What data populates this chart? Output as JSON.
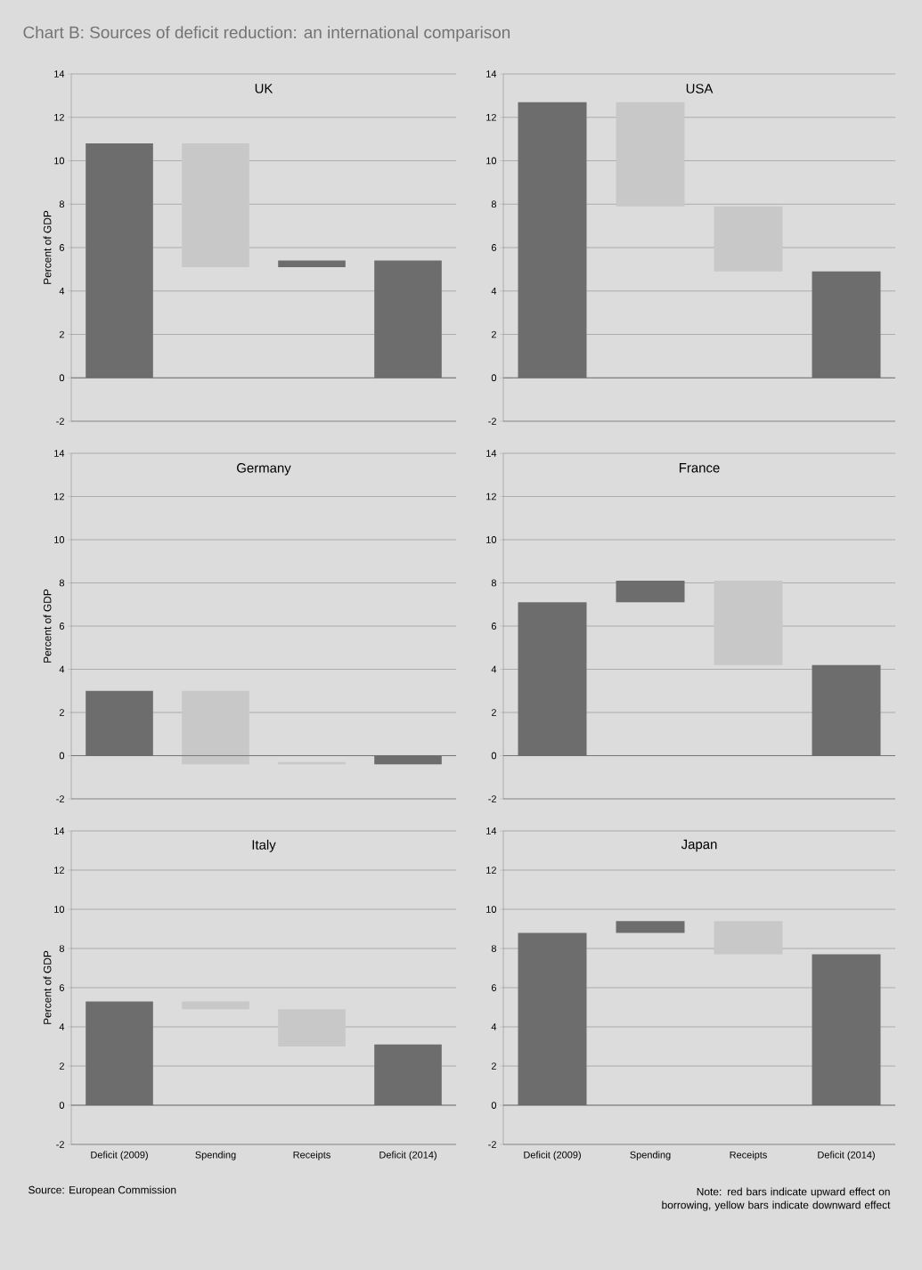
{
  "chart_data": [
    {
      "type": "bar",
      "title": "Chart B: Sources of deficit reduction: an international comparison",
      "subtitle": "UK",
      "ylabel": "Percent of GDP",
      "values": [
        10.8,
        5.7,
        0.3,
        5.4
      ],
      "base": [
        0,
        5.1,
        5.1,
        0
      ],
      "colors": [
        "#6d6d6d",
        "#c8c8c8",
        "#6d6d6d",
        "#6d6d6d"
      ],
      "ylim": [
        -2,
        14
      ],
      "yticks": [
        -2,
        0,
        2,
        4,
        6,
        8,
        10,
        12,
        14
      ],
      "grid": "y",
      "tick_labels": "y"
    },
    {
      "type": "bar",
      "subtitle": "USA",
      "values": [
        12.7,
        4.8,
        3.0,
        4.9
      ],
      "base": [
        0,
        7.9,
        4.9,
        0
      ],
      "colors": [
        "#6d6d6d",
        "#c8c8c8",
        "#c8c8c8",
        "#6d6d6d"
      ],
      "ylim": [
        -2,
        14
      ],
      "yticks": [
        -2,
        0,
        2,
        4,
        6,
        8,
        10,
        12,
        14
      ],
      "grid": "y",
      "tick_labels": "y"
    },
    {
      "type": "bar",
      "subtitle": "Germany",
      "ylabel": "Percent of GDP",
      "values": [
        3.0,
        3.4,
        0.1,
        -0.4
      ],
      "base": [
        0,
        -0.4,
        -0.4,
        0
      ],
      "colors": [
        "#6d6d6d",
        "#c8c8c8",
        "#c8c8c8",
        "#6d6d6d"
      ],
      "ylim": [
        -2,
        14
      ],
      "yticks": [
        -2,
        0,
        2,
        4,
        6,
        8,
        10,
        12,
        14
      ],
      "grid": "y",
      "tick_labels": "y"
    },
    {
      "type": "bar",
      "subtitle": "France",
      "values": [
        7.1,
        1.0,
        3.9,
        4.2
      ],
      "base": [
        0,
        7.1,
        4.2,
        0
      ],
      "colors": [
        "#6d6d6d",
        "#6d6d6d",
        "#c8c8c8",
        "#6d6d6d"
      ],
      "ylim": [
        -2,
        14
      ],
      "yticks": [
        -2,
        0,
        2,
        4,
        6,
        8,
        10,
        12,
        14
      ],
      "grid": "y",
      "tick_labels": "y"
    },
    {
      "type": "bar",
      "subtitle": "Italy",
      "ylabel": "Percent of GDP",
      "categories": [
        "Deficit (2009)",
        "Spending",
        "Receipts",
        "Deficit (2014)"
      ],
      "values": [
        5.3,
        0.4,
        1.9,
        3.1
      ],
      "base": [
        0,
        4.9,
        3.0,
        0
      ],
      "colors": [
        "#6d6d6d",
        "#c8c8c8",
        "#c8c8c8",
        "#6d6d6d"
      ],
      "ylim": [
        -2,
        14
      ],
      "yticks": [
        -2,
        0,
        2,
        4,
        6,
        8,
        10,
        12,
        14
      ],
      "grid": "y",
      "annotations": [
        "Source: European Commission"
      ]
    },
    {
      "type": "bar",
      "subtitle": "Japan",
      "categories": [
        "Deficit (2009)",
        "Spending",
        "Receipts",
        "Deficit (2014)"
      ],
      "values": [
        8.8,
        0.6,
        1.7,
        7.7
      ],
      "base": [
        0,
        8.8,
        7.7,
        0
      ],
      "colors": [
        "#6d6d6d",
        "#6d6d6d",
        "#c8c8c8",
        "#6d6d6d"
      ],
      "ylim": [
        -2,
        14
      ],
      "yticks": [
        -2,
        0,
        2,
        4,
        6,
        8,
        10,
        12,
        14
      ],
      "grid": "y",
      "annotations": [
        "Note: red bars indicate upward effect on borrowing, yellow bars indicate downward effect"
      ]
    }
  ]
}
